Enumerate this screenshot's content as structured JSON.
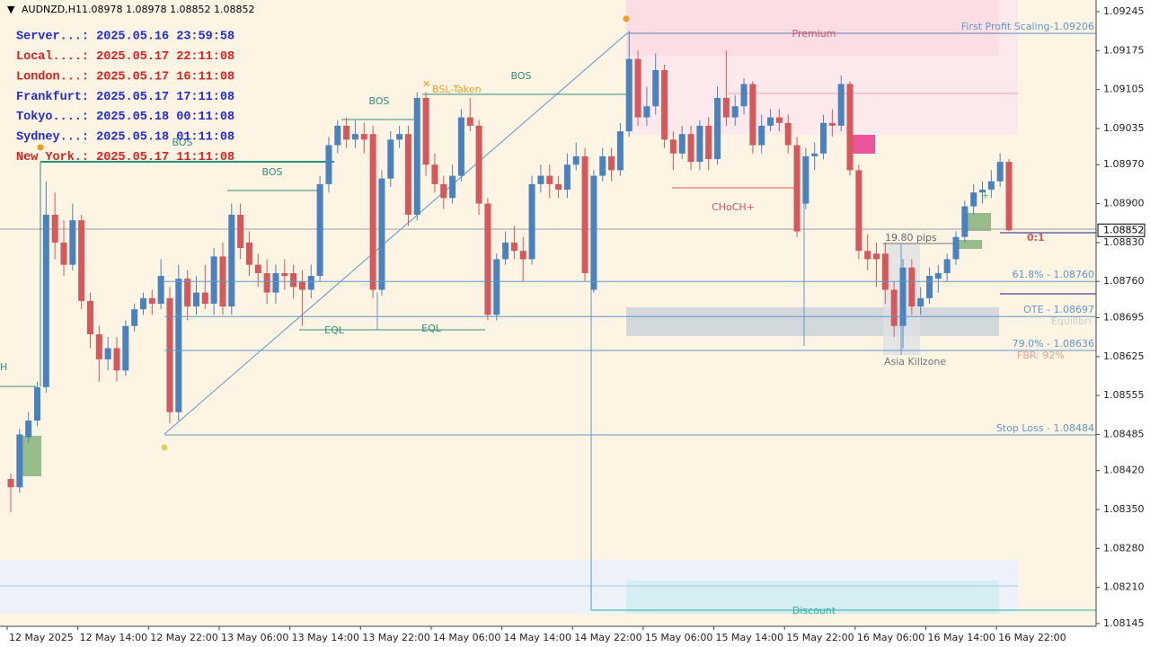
{
  "header": {
    "symbol": "AUDNZD,H1",
    "ohlc": "1.08978 1.08978 1.08852 1.08852"
  },
  "sessions": [
    {
      "text": "Server...: 2025.05.16 23:59:58",
      "color": "#1f2bdc"
    },
    {
      "text": "Local....: 2025.05.17 22:11:08",
      "color": "#e0201e"
    },
    {
      "text": "London...: 2025.05.17 16:11:08",
      "color": "#e0201e"
    },
    {
      "text": "Frankfurt: 2025.05.17 17:11:08",
      "color": "#1f2bdc"
    },
    {
      "text": "Tokyo....: 2025.05.18 00:11:08",
      "color": "#1f2bdc"
    },
    {
      "text": "Sydney...: 2025.05.18 01:11:08",
      "color": "#1f2bdc"
    },
    {
      "text": "New York.: 2025.05.17 11:11:08",
      "color": "#e0201e"
    }
  ],
  "annotations": [
    "Premium",
    "Discount",
    "BOS",
    "BOS",
    "BOS",
    "BOS",
    "EQL",
    "EQL",
    "BSL-Taken",
    "CHoCH+",
    "19.80 pips",
    "Asia Killzone",
    "Equilibri",
    "FBR: 92%",
    "0:1",
    "H"
  ],
  "chart_data": {
    "type": "candlestick",
    "up_color": "#4a82bf",
    "down_color": "#d6585b",
    "ylim": [
      1.0814,
      1.09266
    ],
    "yticks": [
      1.09245,
      1.09175,
      1.09105,
      1.09035,
      {
        "value": 1.0897,
        "label": "1.08970"
      },
      {
        "value": 1.089,
        "label": "1.08900"
      },
      {
        "value": 1.0883,
        "label": "1.08830"
      },
      {
        "value": 1.0876,
        "label": "1.08760"
      },
      1.08695,
      1.08625,
      1.08555,
      1.08485,
      {
        "value": 1.0842,
        "label": "1.08420"
      },
      {
        "value": 1.0835,
        "label": "1.08350"
      },
      {
        "value": 1.0828,
        "label": "1.08280"
      },
      {
        "value": 1.0821,
        "label": "1.08210"
      },
      1.08145
    ],
    "time_labels": [
      "12 May 2025",
      "12 May 14:00",
      "12 May 22:00",
      "13 May 06:00",
      "13 May 14:00",
      "13 May 22:00",
      "14 May 06:00",
      "14 May 14:00",
      "14 May 22:00",
      "15 May 06:00",
      "15 May 14:00",
      "15 May 22:00",
      "16 May 06:00",
      "16 May 14:00",
      "16 May 22:00"
    ],
    "current_price": {
      "value": 1.08852,
      "label": "1.08852"
    },
    "levels": [
      {
        "label": "First Profit Scaling-1.09206",
        "value": 1.09206,
        "color": "#5f97c9"
      },
      {
        "label": "61.8% - 1.08760",
        "value": 1.0876,
        "color": "#5f97c9"
      },
      {
        "label": "OTE - 1.08697",
        "value": 1.08697,
        "color": "#5f97c9"
      },
      {
        "label": "79.0% - 1.08636",
        "value": 1.08636,
        "color": "#5f97c9"
      },
      {
        "label": "Stop Loss - 1.08484",
        "value": 1.08484,
        "color": "#5f97c9"
      }
    ],
    "candles": [
      [
        1.08405,
        1.08415,
        1.08345,
        1.0839
      ],
      [
        1.0839,
        1.08495,
        1.0838,
        1.08485
      ],
      [
        1.0848,
        1.08525,
        1.0847,
        1.0851
      ],
      [
        1.0851,
        1.0858,
        1.085,
        1.0857
      ],
      [
        1.0857,
        1.0894,
        1.0856,
        1.0888
      ],
      [
        1.0888,
        1.0892,
        1.088,
        1.0883
      ],
      [
        1.0883,
        1.0887,
        1.0877,
        1.0879
      ],
      [
        1.0879,
        1.089,
        1.0878,
        1.0887
      ],
      [
        1.0887,
        1.0888,
        1.0871,
        1.08725
      ],
      [
        1.08725,
        1.0874,
        1.0864,
        1.08665
      ],
      [
        1.08665,
        1.0868,
        1.0858,
        1.0862
      ],
      [
        1.0862,
        1.0866,
        1.086,
        1.0864
      ],
      [
        1.0864,
        1.0866,
        1.0858,
        1.086
      ],
      [
        1.086,
        1.0869,
        1.0859,
        1.0868
      ],
      [
        1.0868,
        1.0872,
        1.0867,
        1.0871
      ],
      [
        1.0871,
        1.0874,
        1.087,
        1.0873
      ],
      [
        1.0873,
        1.08745,
        1.087,
        1.0872
      ],
      [
        1.0872,
        1.088,
        1.0871,
        1.0877
      ],
      [
        1.0873,
        1.0875,
        1.08505,
        1.08525
      ],
      [
        1.08525,
        1.0879,
        1.0851,
        1.08765
      ],
      [
        1.08765,
        1.0878,
        1.0869,
        1.08715
      ],
      [
        1.08715,
        1.0877,
        1.087,
        1.0874
      ],
      [
        1.0874,
        1.0879,
        1.0871,
        1.0872
      ],
      [
        1.0872,
        1.0882,
        1.087,
        1.08805
      ],
      [
        1.08805,
        1.0883,
        1.087,
        1.08715
      ],
      [
        1.08715,
        1.089,
        1.087,
        1.0888
      ],
      [
        1.0888,
        1.089,
        1.088,
        1.0882
      ],
      [
        1.0883,
        1.0885,
        1.0877,
        1.0879
      ],
      [
        1.0879,
        1.0881,
        1.0875,
        1.08775
      ],
      [
        1.08775,
        1.088,
        1.0872,
        1.0874
      ],
      [
        1.0874,
        1.0879,
        1.0872,
        1.08775
      ],
      [
        1.08775,
        1.088,
        1.08745,
        1.0877
      ],
      [
        1.08775,
        1.0879,
        1.0873,
        1.0875
      ],
      [
        1.0876,
        1.0878,
        1.0868,
        1.08745
      ],
      [
        1.08745,
        1.0879,
        1.0873,
        1.0877
      ],
      [
        1.0877,
        1.0895,
        1.0876,
        1.08935
      ],
      [
        1.08935,
        1.0902,
        1.0892,
        1.09005
      ],
      [
        1.09005,
        1.0905,
        1.0899,
        1.0904
      ],
      [
        1.0904,
        1.09055,
        1.09,
        1.09015
      ],
      [
        1.09015,
        1.0905,
        1.09,
        1.09025
      ],
      [
        1.09025,
        1.09045,
        1.0899,
        1.09015
      ],
      [
        1.09025,
        1.0904,
        1.0873,
        1.08745
      ],
      [
        1.08745,
        1.0896,
        1.08735,
        1.08945
      ],
      [
        1.08945,
        1.0903,
        1.0893,
        1.09015
      ],
      [
        1.09015,
        1.0904,
        1.09,
        1.09025
      ],
      [
        1.09025,
        1.0904,
        1.0886,
        1.0888
      ],
      [
        1.0888,
        1.091,
        1.0887,
        1.0909
      ],
      [
        1.0909,
        1.091,
        1.0895,
        1.0897
      ],
      [
        1.0897,
        1.0899,
        1.0892,
        1.08935
      ],
      [
        1.08935,
        1.0895,
        1.0889,
        1.0891
      ],
      [
        1.0891,
        1.0897,
        1.089,
        1.0895
      ],
      [
        1.0895,
        1.0907,
        1.0894,
        1.09055
      ],
      [
        1.09055,
        1.0909,
        1.0903,
        1.0904
      ],
      [
        1.0904,
        1.0905,
        1.0888,
        1.089
      ],
      [
        1.089,
        1.0891,
        1.0869,
        1.087
      ],
      [
        1.087,
        1.0881,
        1.0869,
        1.088
      ],
      [
        1.088,
        1.0885,
        1.0879,
        1.0883
      ],
      [
        1.0883,
        1.0886,
        1.088,
        1.08815
      ],
      [
        1.08815,
        1.0884,
        1.0876,
        1.088
      ],
      [
        1.088,
        1.0895,
        1.0879,
        1.08935
      ],
      [
        1.08935,
        1.0897,
        1.0892,
        1.0895
      ],
      [
        1.0895,
        1.0897,
        1.0891,
        1.08935
      ],
      [
        1.08935,
        1.0895,
        1.0891,
        1.08925
      ],
      [
        1.08925,
        1.0899,
        1.0891,
        1.0897
      ],
      [
        1.0897,
        1.0901,
        1.0896,
        1.08985
      ],
      [
        1.08985,
        1.09,
        1.0876,
        1.08775
      ],
      [
        1.08745,
        1.0896,
        1.0874,
        1.0895
      ],
      [
        1.0895,
        1.09,
        1.0894,
        1.08985
      ],
      [
        1.08985,
        1.09,
        1.0894,
        1.0896
      ],
      [
        1.0896,
        1.09045,
        1.0895,
        1.0903
      ],
      [
        1.0903,
        1.0921,
        1.0902,
        1.0916
      ],
      [
        1.0916,
        1.09175,
        1.0904,
        1.09055
      ],
      [
        1.09055,
        1.0911,
        1.0904,
        1.09075
      ],
      [
        1.09075,
        1.0917,
        1.0906,
        1.0914
      ],
      [
        1.0914,
        1.0915,
        1.09,
        1.09015
      ],
      [
        1.09015,
        1.0903,
        1.0896,
        1.0899
      ],
      [
        1.0899,
        1.0904,
        1.0898,
        1.09025
      ],
      [
        1.09025,
        1.0904,
        1.0896,
        1.08975
      ],
      [
        1.08975,
        1.0905,
        1.0896,
        1.0904
      ],
      [
        1.0904,
        1.09055,
        1.0896,
        1.0898
      ],
      [
        1.0898,
        1.0911,
        1.0897,
        1.0909
      ],
      [
        1.0909,
        1.09175,
        1.0904,
        1.09055
      ],
      [
        1.09055,
        1.09095,
        1.0904,
        1.09075
      ],
      [
        1.09075,
        1.09125,
        1.0906,
        1.09115
      ],
      [
        1.09115,
        1.0912,
        1.0899,
        1.09005
      ],
      [
        1.09005,
        1.0906,
        1.0899,
        1.0904
      ],
      [
        1.0904,
        1.0907,
        1.0903,
        1.09055
      ],
      [
        1.09055,
        1.0907,
        1.0903,
        1.09045
      ],
      [
        1.09045,
        1.0906,
        1.0899,
        1.09005
      ],
      [
        1.09005,
        1.0902,
        1.0884,
        1.0885
      ],
      [
        1.089,
        1.09,
        1.0889,
        1.08985
      ],
      [
        1.08985,
        1.0901,
        1.0896,
        1.0899
      ],
      [
        1.0899,
        1.0906,
        1.0898,
        1.09045
      ],
      [
        1.09045,
        1.0907,
        1.0902,
        1.0904
      ],
      [
        1.0904,
        1.0913,
        1.0903,
        1.09115
      ],
      [
        1.09115,
        1.0912,
        1.0895,
        1.0896
      ],
      [
        1.0896,
        1.0897,
        1.088,
        1.08815
      ],
      [
        1.08815,
        1.08845,
        1.0878,
        1.088
      ],
      [
        1.0881,
        1.0883,
        1.0875,
        1.088
      ],
      [
        1.0881,
        1.0883,
        1.0872,
        1.08745
      ],
      [
        1.08745,
        1.0876,
        1.0866,
        1.0868
      ],
      [
        1.0868,
        1.088,
        1.0864,
        1.08785
      ],
      [
        1.08785,
        1.088,
        1.087,
        1.08715
      ],
      [
        1.08715,
        1.0875,
        1.087,
        1.0873
      ],
      [
        1.0873,
        1.08785,
        1.0872,
        1.0877
      ],
      [
        1.08765,
        1.0879,
        1.0874,
        1.08775
      ],
      [
        1.08775,
        1.0881,
        1.0876,
        1.088
      ],
      [
        1.088,
        1.0885,
        1.0879,
        1.0884
      ],
      [
        1.0884,
        1.08905,
        1.0883,
        1.08895
      ],
      [
        1.08895,
        1.08935,
        1.0888,
        1.0892
      ],
      [
        1.0892,
        1.0894,
        1.089,
        1.08925
      ],
      [
        1.08925,
        1.0896,
        1.0891,
        1.0894
      ],
      [
        1.0894,
        1.0899,
        1.0893,
        1.08975
      ],
      [
        1.08975,
        1.0898,
        1.0885,
        1.08852
      ]
    ]
  }
}
